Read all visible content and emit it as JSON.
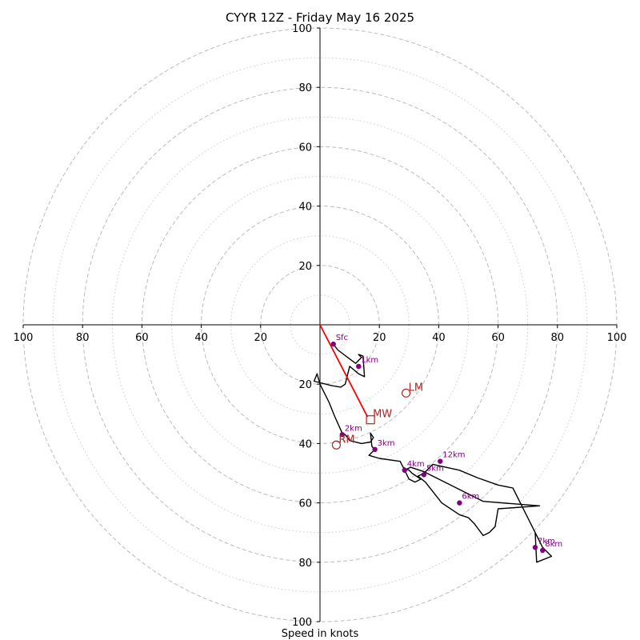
{
  "chart_data": {
    "type": "line",
    "chart_kind": "hodograph",
    "title": "CYYR 12Z - Friday May 16 2025",
    "xlabel": "Speed in knots",
    "ylabel": "",
    "xlim": [
      -100,
      100
    ],
    "ylim": [
      -100,
      100
    ],
    "tick_labels": [
      "100",
      "80",
      "60",
      "40",
      "20",
      "20",
      "40",
      "60",
      "80",
      "100"
    ],
    "x_tick_values": [
      -100,
      -80,
      -60,
      -40,
      -20,
      20,
      40,
      60,
      80,
      100
    ],
    "y_tick_values": [
      100,
      80,
      60,
      40,
      20,
      -20,
      -40,
      -60,
      -80,
      -100
    ],
    "rings_major": [
      20,
      40,
      60,
      80,
      100
    ],
    "rings_minor": [
      10,
      30,
      50,
      70,
      90
    ],
    "grid": true,
    "colors": {
      "trace": "#000000",
      "height_markers": "#800080",
      "storm_motion": "#b22222",
      "mean_wind_vector": "#ff0000",
      "grid_major": "#bbbbbb",
      "grid_minor": "#cccccc"
    },
    "series": [
      {
        "u": [
          4.5,
          6,
          10,
          12,
          13,
          14,
          13,
          14.5,
          15,
          13,
          10,
          8.5,
          7,
          4,
          -2,
          -1,
          0,
          3,
          5,
          7.5,
          8.5,
          10,
          14,
          17,
          18,
          17,
          17.5,
          18.5,
          16.5,
          20,
          27,
          28,
          30,
          31,
          34,
          32,
          30,
          28.5,
          30.5,
          35,
          40,
          55,
          74,
          60,
          59,
          57,
          55,
          52,
          50,
          47,
          41,
          35.5,
          33,
          35,
          38,
          47,
          53,
          60,
          65,
          75,
          78,
          73,
          72.5
        ],
        "v": [
          -6.5,
          -8.5,
          -11.5,
          -13,
          -12,
          -11,
          -10,
          -10.5,
          -17.5,
          -16.5,
          -14,
          -20,
          -21,
          -20.5,
          -19,
          -16.5,
          -20,
          -26,
          -31,
          -36.5,
          -37,
          -39,
          -40,
          -39.5,
          -38,
          -36.5,
          -41,
          -42,
          -44,
          -45,
          -46,
          -48,
          -49,
          -50,
          -52,
          -53,
          -52,
          -49,
          -48,
          -49.5,
          -52,
          -59.5,
          -61,
          -62,
          -68,
          -70,
          -71,
          -67,
          -65,
          -64,
          -60,
          -53,
          -51,
          -50,
          -47,
          -49,
          -51.5,
          -54,
          -55,
          -75,
          -78,
          -80,
          -70
        ]
      }
    ],
    "height_markers": [
      {
        "label": "Sfc",
        "u": 4.5,
        "v": -6.5
      },
      {
        "label": "1km",
        "u": 13,
        "v": -14
      },
      {
        "label": "2km",
        "u": 7.5,
        "v": -37
      },
      {
        "label": "3km",
        "u": 18.5,
        "v": -42
      },
      {
        "label": "4km",
        "u": 28.5,
        "v": -49
      },
      {
        "label": "5km",
        "u": 35,
        "v": -50.5
      },
      {
        "label": "6km",
        "u": 47,
        "v": -60
      },
      {
        "label": "7km",
        "u": 72.5,
        "v": -75
      },
      {
        "label": "8km",
        "u": 75,
        "v": -76
      },
      {
        "label": "12km",
        "u": 40.5,
        "v": -46
      }
    ],
    "storm_motion": [
      {
        "label": "LM",
        "u": 29,
        "v": -23,
        "marker": "circle"
      },
      {
        "label": "RM",
        "u": 5.5,
        "v": -40.5,
        "marker": "circle"
      },
      {
        "label": "MW",
        "u": 17,
        "v": -32,
        "marker": "square"
      }
    ],
    "mean_wind_vector": {
      "u": 16,
      "v": -31
    }
  }
}
